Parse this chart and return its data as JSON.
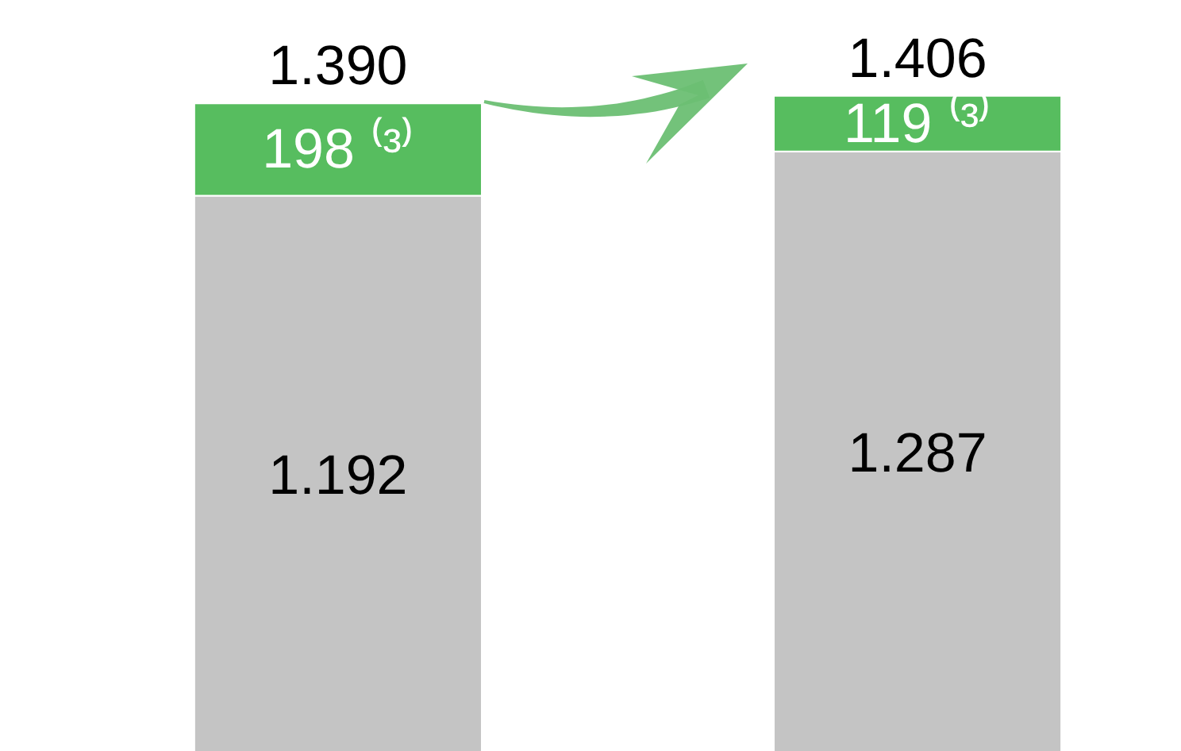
{
  "chart_data": {
    "type": "bar",
    "stacked": true,
    "categories": [
      null,
      null
    ],
    "series": [
      {
        "color": "#c4c4c4",
        "values": [
          1192,
          1287
        ],
        "value_labels": [
          "1.192",
          "1.287"
        ]
      },
      {
        "color": "#57bd5f",
        "values": [
          198,
          119
        ],
        "value_labels": [
          "198 ⁽³⁾",
          "119 ⁽³⁾"
        ]
      }
    ],
    "totals": [
      "1.390",
      "1.406"
    ],
    "ylim": [
      0,
      1610
    ],
    "tick_labels": false
  }
}
